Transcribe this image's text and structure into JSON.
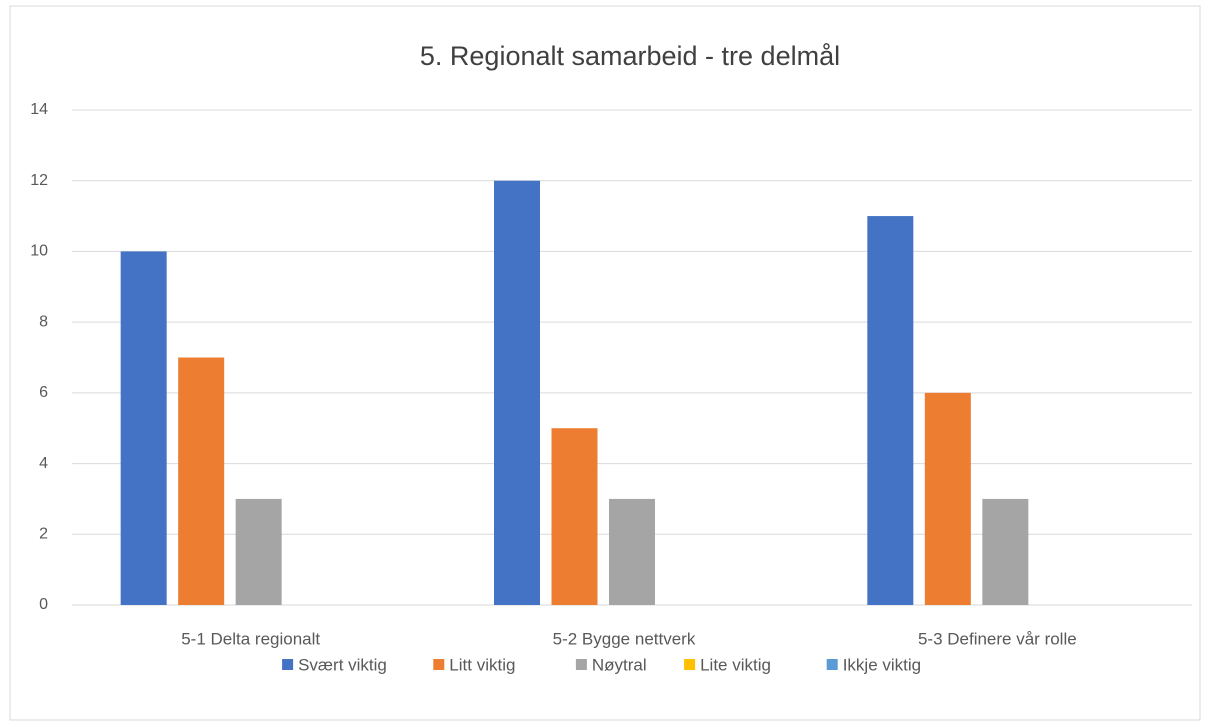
{
  "chart_data": {
    "type": "bar",
    "title": "5.  Regionalt samarbeid  - tre delmål",
    "categories": [
      "5-1 Delta regionalt",
      "5-2 Bygge nettverk",
      "5-3 Definere vår rolle"
    ],
    "series": [
      {
        "name": "Svært viktig",
        "color": "#4472c4",
        "values": [
          10,
          12,
          11
        ]
      },
      {
        "name": "Litt viktig",
        "color": "#ed7d31",
        "values": [
          7,
          5,
          6
        ]
      },
      {
        "name": "Nøytral",
        "color": "#a5a5a5",
        "values": [
          3,
          3,
          3
        ]
      },
      {
        "name": "Lite viktig",
        "color": "#ffc000",
        "values": [
          0,
          0,
          0
        ]
      },
      {
        "name": "Ikkje viktig",
        "color": "#5b9bd5",
        "values": [
          0,
          0,
          0
        ]
      }
    ],
    "ylim": [
      0,
      14
    ],
    "yticks": [
      0,
      2,
      4,
      6,
      8,
      10,
      12,
      14
    ],
    "grid": true,
    "legend": "bottom"
  }
}
